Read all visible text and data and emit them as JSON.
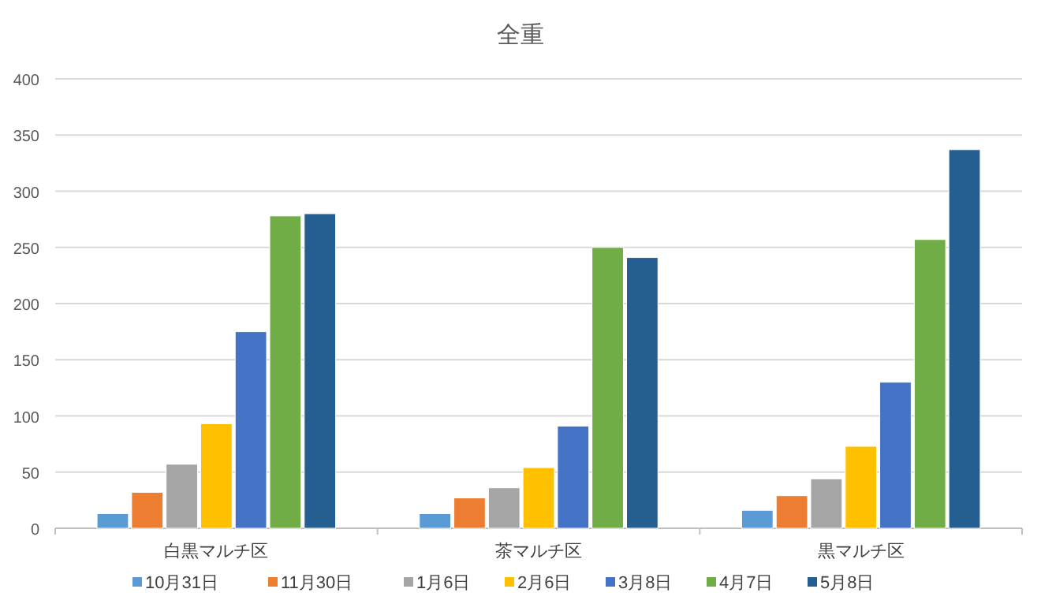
{
  "chart_data": {
    "type": "bar",
    "title": "全重",
    "categories": [
      "白黒マルチ区",
      "茶マルチ区",
      "黒マルチ区"
    ],
    "series": [
      {
        "name": "10月31日",
        "color": "#5b9bd5",
        "values": [
          13,
          13,
          16
        ]
      },
      {
        "name": "11月30日",
        "color": "#ed7d31",
        "values": [
          32,
          27,
          29
        ]
      },
      {
        "name": "1月6日",
        "color": "#a5a5a5",
        "values": [
          57,
          36,
          44
        ]
      },
      {
        "name": "2月6日",
        "color": "#ffc000",
        "values": [
          93,
          54,
          73
        ]
      },
      {
        "name": "3月8日",
        "color": "#4472c4",
        "values": [
          175,
          91,
          130
        ]
      },
      {
        "name": "4月7日",
        "color": "#70ad47",
        "values": [
          278,
          250,
          257
        ]
      },
      {
        "name": "5月8日",
        "color": "#255e91",
        "values": [
          280,
          241,
          337
        ]
      }
    ],
    "ylim": [
      0,
      400
    ],
    "yticks": [
      0,
      50,
      100,
      150,
      200,
      250,
      300,
      350,
      400
    ],
    "grid": "y",
    "legend": "bottom"
  }
}
